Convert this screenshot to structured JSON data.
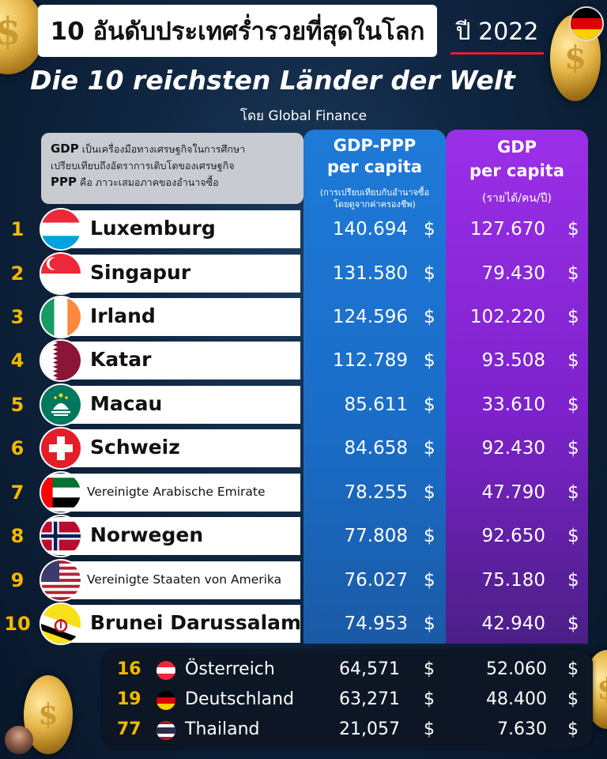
{
  "header": {
    "title_th": "10 อันดับประเทศร่ำรวยที่สุดในโลก",
    "year": "ปี 2022",
    "title_de": "Die 10 reichsten Länder der Welt",
    "source": "โดย Global Finance"
  },
  "note": {
    "gdp_label": "GDP",
    "gdp_text": " เป็นเครื่องมือทางเศรษฐกิจในการศึกษา",
    "gdp_text2": "เปรียบเทียบถึงอัตราการเติบโตของเศรษฐกิจ",
    "ppp_label": "PPP",
    "ppp_text": " คือ ภาวะเสมอภาคของอำนาจซื้อ"
  },
  "columns": {
    "ppp_title1": "GDP-PPP",
    "ppp_title2": "per capita",
    "ppp_sub1": "(การเปรียบเทียบกับอำนาจซื้อ",
    "ppp_sub2": "โดยดูจากค่าครองชีพ)",
    "gdp_title1": "GDP",
    "gdp_title2": "per capita",
    "gdp_sub": "(รายได้/คน/ปี)"
  },
  "currency": "$",
  "rows": [
    {
      "rank": "1",
      "name": "Luxemburg",
      "ppp": "140.694",
      "gdp": "127.670"
    },
    {
      "rank": "2",
      "name": "Singapur",
      "ppp": "131.580",
      "gdp": "79.430"
    },
    {
      "rank": "3",
      "name": "Irland",
      "ppp": "124.596",
      "gdp": "102.220"
    },
    {
      "rank": "4",
      "name": "Katar",
      "ppp": "112.789",
      "gdp": "93.508"
    },
    {
      "rank": "5",
      "name": "Macau",
      "ppp": "85.611",
      "gdp": "33.610"
    },
    {
      "rank": "6",
      "name": "Schweiz",
      "ppp": "84.658",
      "gdp": "92.430"
    },
    {
      "rank": "7",
      "name": "Vereinigte Arabische Emirate",
      "ppp": "78.255",
      "gdp": "47.790"
    },
    {
      "rank": "8",
      "name": "Norwegen",
      "ppp": "77.808",
      "gdp": "92.650"
    },
    {
      "rank": "9",
      "name": "Vereinigte Staaten von Amerika",
      "ppp": "76.027",
      "gdp": "75.180"
    },
    {
      "rank": "10",
      "name": "Brunei Darussalam",
      "ppp": "74.953",
      "gdp": "42.940"
    }
  ],
  "extra_rows": [
    {
      "rank": "16",
      "name": "Österreich",
      "ppp": "64,571",
      "gdp": "52.060"
    },
    {
      "rank": "19",
      "name": "Deutschland",
      "ppp": "63,271",
      "gdp": "48.400"
    },
    {
      "rank": "77",
      "name": "Thailand",
      "ppp": "21,057",
      "gdp": "7.630"
    }
  ],
  "icons": {
    "coin": "dollar-coin-icon",
    "logo": "germany-flag-icon",
    "flags": [
      "luxembourg-flag-icon",
      "singapore-flag-icon",
      "ireland-flag-icon",
      "qatar-flag-icon",
      "macau-flag-icon",
      "switzerland-flag-icon",
      "uae-flag-icon",
      "norway-flag-icon",
      "usa-flag-icon",
      "brunei-flag-icon",
      "austria-flag-icon",
      "germany-flag-icon",
      "thailand-flag-icon"
    ]
  },
  "colors": {
    "rank": "#f5b800",
    "ppp_column": "#1e7ad8",
    "gdp_column": "#9b2fe8",
    "year_underline": "#e0202a"
  }
}
